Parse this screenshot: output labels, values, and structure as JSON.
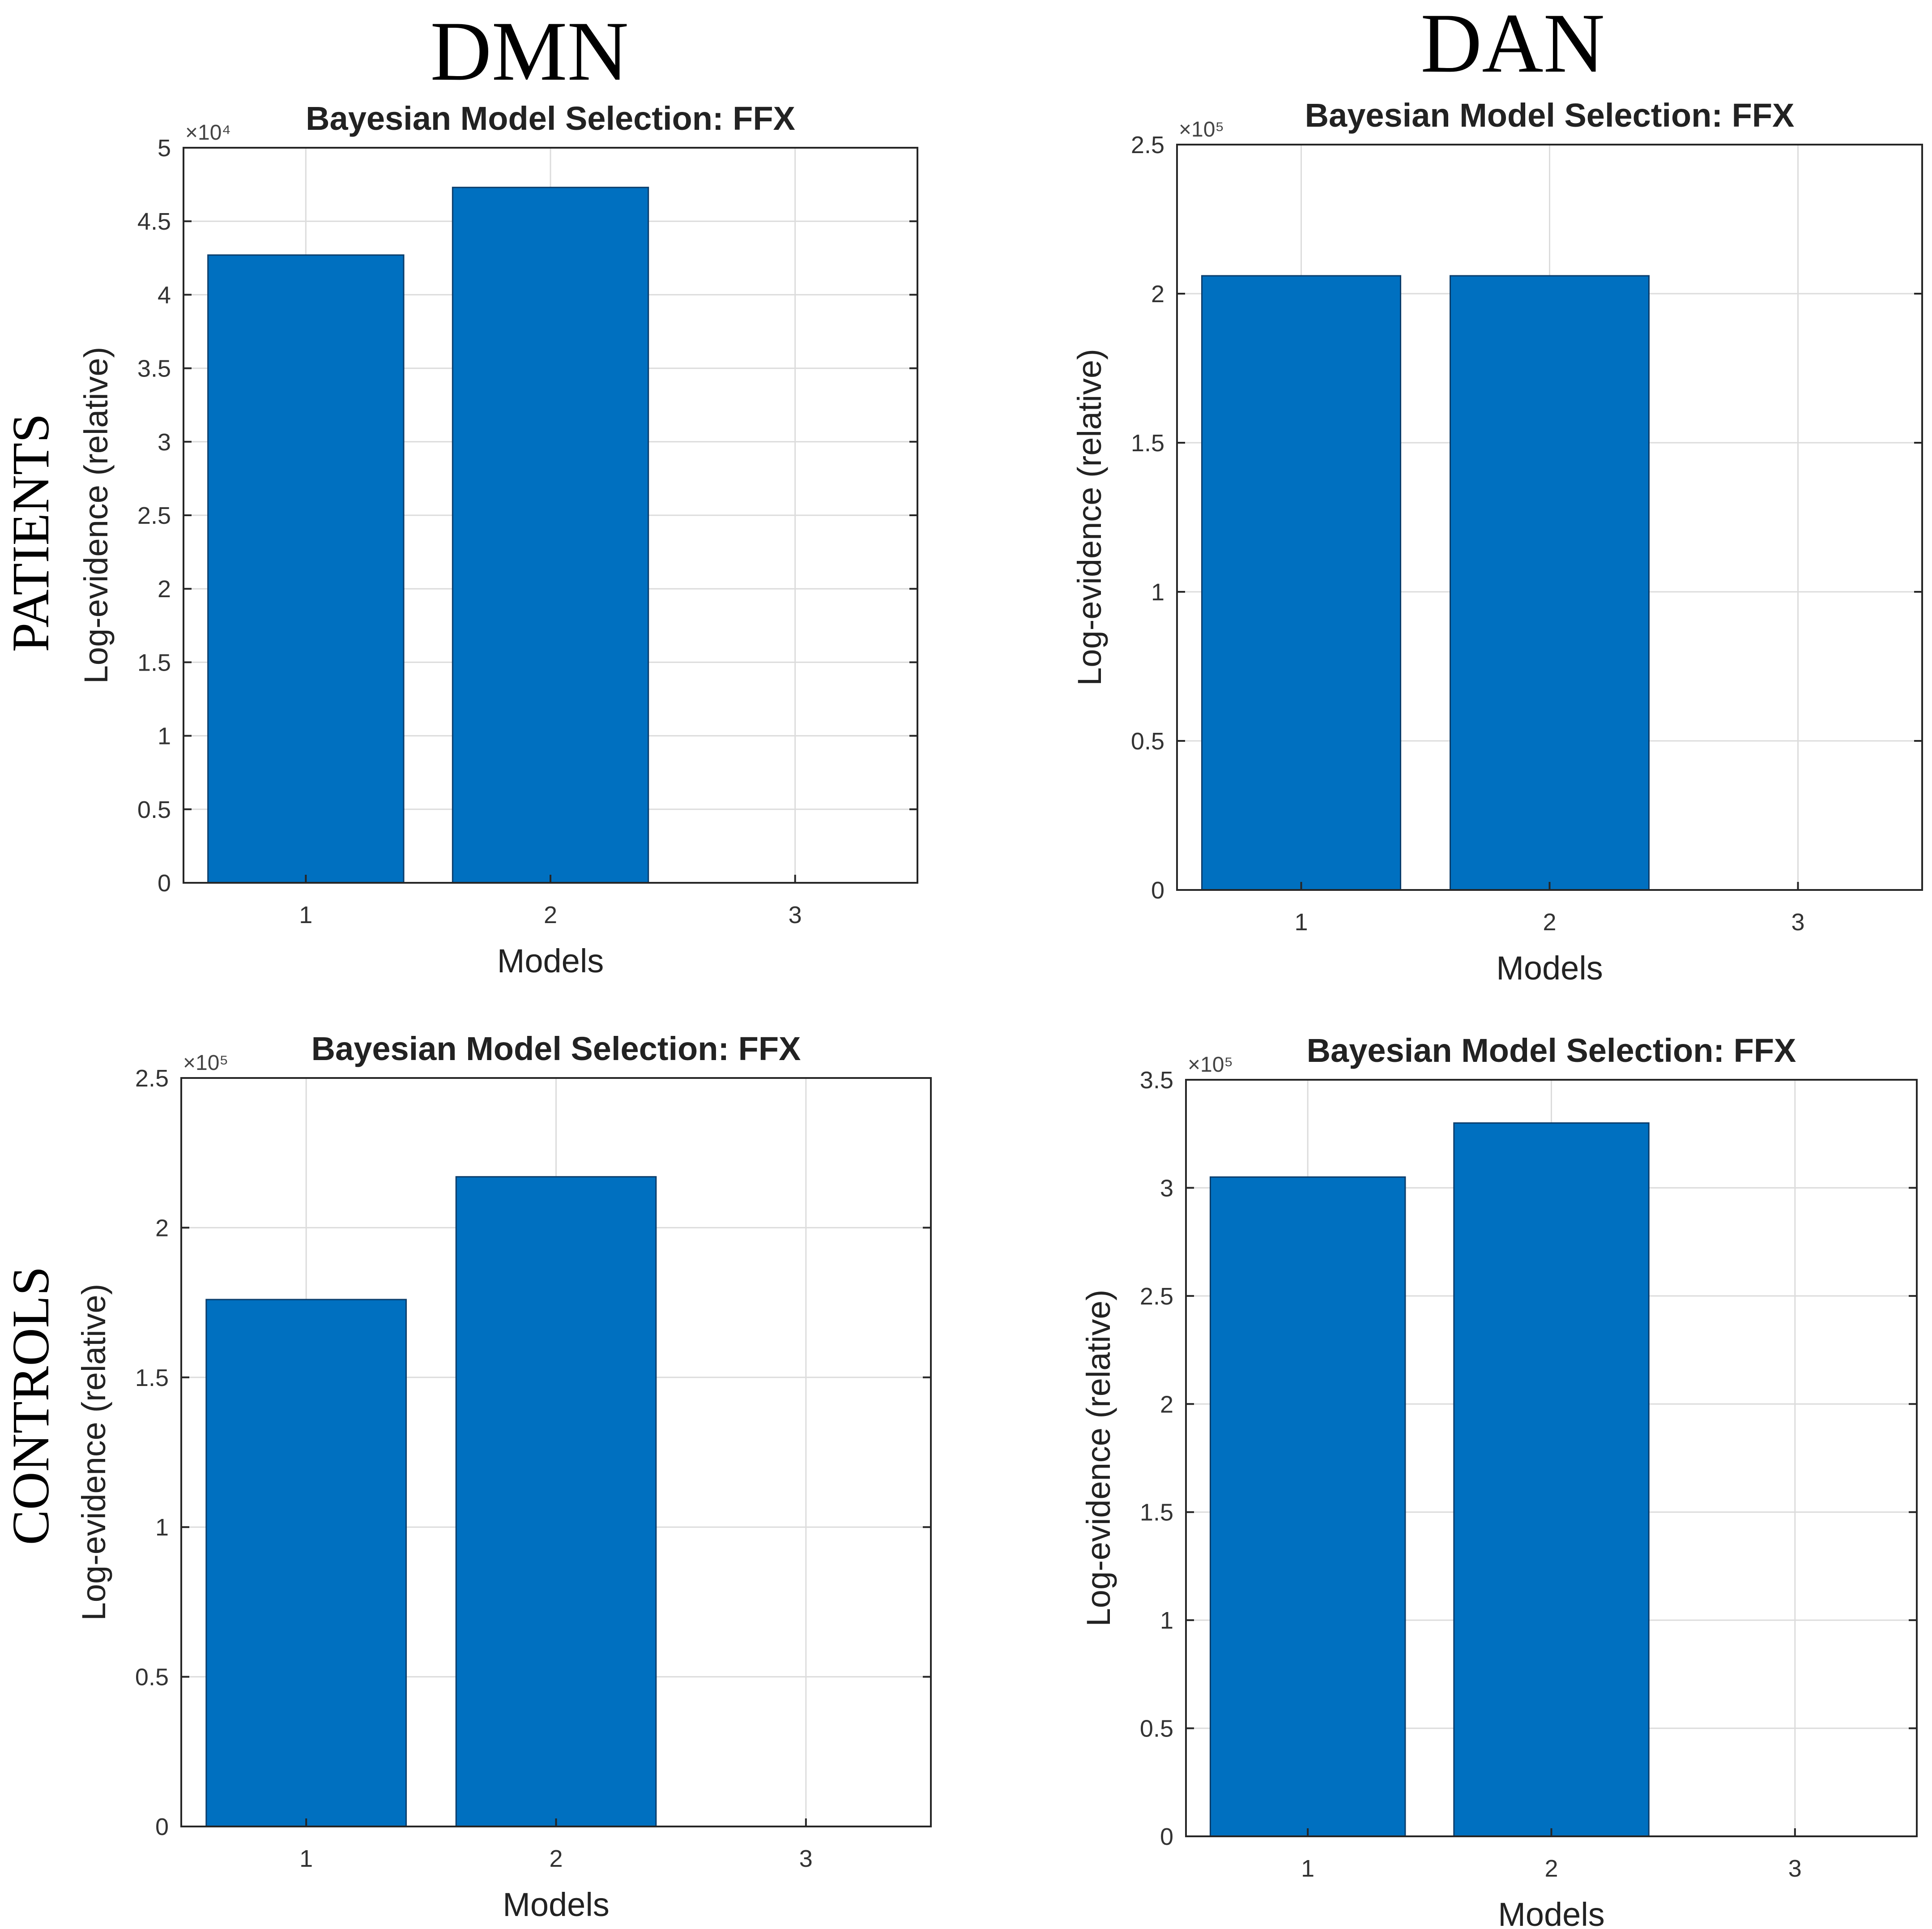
{
  "figure": {
    "column_titles": [
      "DMN",
      "DAN"
    ],
    "row_titles": [
      "PATIENTS",
      "CONTROLS"
    ]
  },
  "colors": {
    "bar": "#0070c0"
  },
  "chart_data": [
    {
      "type": "bar",
      "panel": "patients-dmn",
      "title": "Bayesian Model Selection: FFX",
      "xlabel": "Models",
      "ylabel": "Log-evidence (relative)",
      "exponent": "×10⁴",
      "categories": [
        "1",
        "2",
        "3"
      ],
      "values": [
        4.27,
        4.73,
        0
      ],
      "ylim": [
        0,
        5
      ],
      "yticks": [
        "0",
        "0.5",
        "1",
        "1.5",
        "2",
        "2.5",
        "3",
        "3.5",
        "4",
        "4.5",
        "5"
      ],
      "grid": true
    },
    {
      "type": "bar",
      "panel": "patients-dan",
      "title": "Bayesian Model Selection: FFX",
      "xlabel": "Models",
      "ylabel": "Log-evidence (relative)",
      "exponent": "×10⁵",
      "categories": [
        "1",
        "2",
        "3"
      ],
      "values": [
        2.06,
        2.06,
        0
      ],
      "ylim": [
        0,
        2.5
      ],
      "yticks": [
        "0",
        "0.5",
        "1",
        "1.5",
        "2",
        "2.5"
      ],
      "grid": true
    },
    {
      "type": "bar",
      "panel": "controls-dmn",
      "title": "Bayesian Model Selection: FFX",
      "xlabel": "Models",
      "ylabel": "Log-evidence (relative)",
      "exponent": "×10⁵",
      "categories": [
        "1",
        "2",
        "3"
      ],
      "values": [
        1.76,
        2.17,
        0
      ],
      "ylim": [
        0,
        2.5
      ],
      "yticks": [
        "0",
        "0.5",
        "1",
        "1.5",
        "2",
        "2.5"
      ],
      "grid": true
    },
    {
      "type": "bar",
      "panel": "controls-dan",
      "title": "Bayesian Model Selection: FFX",
      "xlabel": "Models",
      "ylabel": "Log-evidence (relative)",
      "exponent": "×10⁵",
      "categories": [
        "1",
        "2",
        "3"
      ],
      "values": [
        3.05,
        3.3,
        0
      ],
      "ylim": [
        0,
        3.5
      ],
      "yticks": [
        "0",
        "0.5",
        "1",
        "1.5",
        "2",
        "2.5",
        "3",
        "3.5"
      ],
      "grid": true
    }
  ]
}
